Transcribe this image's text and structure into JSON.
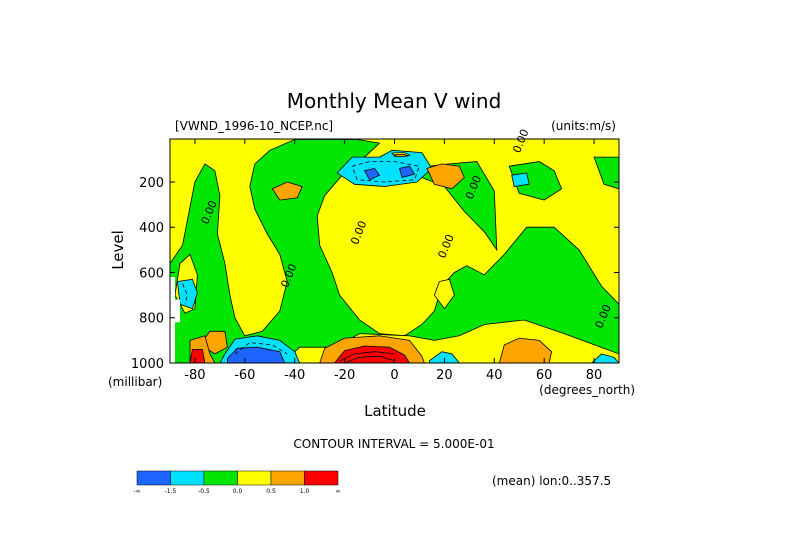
{
  "chart_data": {
    "type": "contour",
    "title": "Monthly Mean V wind",
    "dataset": "[VWND_1996-10_NCEP.nc]",
    "units": "(units:m/s)",
    "xlabel": "Latitude",
    "x_units": "(degrees_north)",
    "ylabel": "Level",
    "y_units": "(millibar)",
    "xlim": [
      -90,
      90
    ],
    "ylim": [
      1000,
      10
    ],
    "x_ticks": [
      {
        "value": -80,
        "label": "-80"
      },
      {
        "value": -60,
        "label": "-60"
      },
      {
        "value": -40,
        "label": "-40"
      },
      {
        "value": -20,
        "label": "-20"
      },
      {
        "value": 0,
        "label": "0"
      },
      {
        "value": 20,
        "label": "20"
      },
      {
        "value": 40,
        "label": "40"
      },
      {
        "value": 60,
        "label": "60"
      },
      {
        "value": 80,
        "label": "80"
      }
    ],
    "y_ticks": [
      {
        "value": 200,
        "label": "200"
      },
      {
        "value": 400,
        "label": "400"
      },
      {
        "value": 600,
        "label": "600"
      },
      {
        "value": 800,
        "label": "800"
      },
      {
        "value": 1000,
        "label": "1000"
      }
    ],
    "contour_interval": "CONTOUR INTERVAL = 5.000E-01",
    "mean_note": "(mean) lon:0..357.5",
    "levels": [
      {
        "label": "-∞",
        "color": "#1e64ff"
      },
      {
        "label": "-1.5",
        "color": "#00e1ff"
      },
      {
        "label": "-0.5",
        "color": "#00e600"
      },
      {
        "label": "0.0",
        "color": "#ffff00"
      },
      {
        "label": "0.5",
        "color": "#ffa500"
      },
      {
        "label": "1.0",
        "color": "#ff0000"
      },
      {
        "label": "∞",
        "color": ""
      }
    ],
    "contour_labels": [
      {
        "lat": 52,
        "lev": 25,
        "text": "0.00"
      },
      {
        "lat": -73,
        "lev": 340,
        "text": "0.00"
      },
      {
        "lat": -13,
        "lev": 430,
        "text": "0.00"
      },
      {
        "lat": -41,
        "lev": 620,
        "text": "0.00"
      },
      {
        "lat": 22,
        "lev": 490,
        "text": "0.00"
      },
      {
        "lat": 33,
        "lev": 230,
        "text": "0.00"
      },
      {
        "lat": 85,
        "lev": 800,
        "text": "0.00"
      }
    ],
    "regions": [
      {
        "level": "neutral",
        "points": [
          [
            -90,
            10
          ],
          [
            90,
            10
          ],
          [
            90,
            1000
          ],
          [
            -90,
            1000
          ]
        ]
      },
      {
        "level": "neg_small",
        "points": [
          [
            -90,
            560
          ],
          [
            -85,
            480
          ],
          [
            -80,
            200
          ],
          [
            -76,
            120
          ],
          [
            -72,
            150
          ],
          [
            -70,
            260
          ],
          [
            -71,
            430
          ],
          [
            -68,
            560
          ],
          [
            -66,
            700
          ],
          [
            -64,
            800
          ],
          [
            -60,
            880
          ],
          [
            -53,
            860
          ],
          [
            -46,
            770
          ],
          [
            -43,
            640
          ],
          [
            -46,
            520
          ],
          [
            -51,
            430
          ],
          [
            -56,
            320
          ],
          [
            -58,
            220
          ],
          [
            -56,
            120
          ],
          [
            -50,
            60
          ],
          [
            -40,
            12
          ],
          [
            -15,
            12
          ],
          [
            -6,
            28
          ],
          [
            -11,
            80
          ],
          [
            -21,
            170
          ],
          [
            -28,
            260
          ],
          [
            -31,
            350
          ],
          [
            -30,
            480
          ],
          [
            -25,
            600
          ],
          [
            -22,
            700
          ],
          [
            -14,
            810
          ],
          [
            -6,
            870
          ],
          [
            4,
            880
          ],
          [
            11,
            830
          ],
          [
            16,
            770
          ],
          [
            19,
            660
          ],
          [
            24,
            600
          ],
          [
            29,
            570
          ],
          [
            36,
            610
          ],
          [
            44,
            520
          ],
          [
            53,
            400
          ],
          [
            64,
            400
          ],
          [
            74,
            500
          ],
          [
            83,
            660
          ],
          [
            90,
            740
          ],
          [
            90,
            1000
          ],
          [
            -90,
            1000
          ]
        ]
      },
      {
        "level": "neg_small",
        "points": [
          [
            6,
            140
          ],
          [
            22,
            120
          ],
          [
            33,
            110
          ],
          [
            40,
            240
          ],
          [
            41,
            500
          ],
          [
            36,
            420
          ],
          [
            28,
            330
          ],
          [
            20,
            220
          ],
          [
            11,
            180
          ]
        ]
      },
      {
        "level": "neg_small",
        "points": [
          [
            46,
            130
          ],
          [
            58,
            110
          ],
          [
            64,
            150
          ],
          [
            67,
            230
          ],
          [
            60,
            280
          ],
          [
            50,
            250
          ]
        ]
      },
      {
        "level": "neg_small",
        "points": [
          [
            80,
            90
          ],
          [
            90,
            90
          ],
          [
            90,
            230
          ],
          [
            84,
            210
          ]
        ]
      },
      {
        "level": "neutral",
        "points": [
          [
            -86,
            560
          ],
          [
            -82,
            520
          ],
          [
            -79,
            610
          ],
          [
            -80,
            760
          ],
          [
            -84,
            780
          ],
          [
            -88,
            700
          ]
        ]
      },
      {
        "level": "neutral",
        "points": [
          [
            -45,
            1000
          ],
          [
            -38,
            930
          ],
          [
            -24,
            930
          ],
          [
            -14,
            870
          ],
          [
            6,
            880
          ],
          [
            16,
            900
          ],
          [
            26,
            880
          ],
          [
            36,
            830
          ],
          [
            52,
            810
          ],
          [
            68,
            870
          ],
          [
            90,
            960
          ],
          [
            90,
            1000
          ]
        ]
      },
      {
        "level": "neutral",
        "points": [
          [
            18,
            640
          ],
          [
            22,
            630
          ],
          [
            24,
            700
          ],
          [
            20,
            760
          ],
          [
            16,
            700
          ]
        ]
      },
      {
        "level": "neg_med",
        "points": [
          [
            -87,
            640
          ],
          [
            -81,
            630
          ],
          [
            -79,
            690
          ],
          [
            -81,
            760
          ],
          [
            -86,
            740
          ]
        ]
      },
      {
        "level": "neg_med",
        "points": [
          [
            -6,
            90
          ],
          [
            -1,
            60
          ],
          [
            11,
            70
          ],
          [
            15,
            140
          ],
          [
            9,
            200
          ],
          [
            -4,
            220
          ],
          [
            -16,
            210
          ],
          [
            -23,
            160
          ],
          [
            -17,
            90
          ]
        ]
      },
      {
        "level": "neg_med",
        "points": [
          [
            47,
            170
          ],
          [
            53,
            160
          ],
          [
            54,
            210
          ],
          [
            48,
            220
          ]
        ]
      },
      {
        "level": "neg_med",
        "points": [
          [
            -68,
            960
          ],
          [
            -64,
            895
          ],
          [
            -55,
            880
          ],
          [
            -46,
            900
          ],
          [
            -40,
            950
          ],
          [
            -38,
            1000
          ],
          [
            -70,
            1000
          ]
        ]
      },
      {
        "level": "neg_med",
        "points": [
          [
            14,
            990
          ],
          [
            19,
            950
          ],
          [
            23,
            960
          ],
          [
            26,
            1000
          ],
          [
            14,
            1000
          ]
        ]
      },
      {
        "level": "neg_med",
        "points": [
          [
            79,
            1000
          ],
          [
            83,
            960
          ],
          [
            88,
            975
          ],
          [
            90,
            1000
          ]
        ]
      },
      {
        "level": "neg_large",
        "points": [
          [
            -12,
            150
          ],
          [
            -8,
            140
          ],
          [
            -6,
            170
          ],
          [
            -10,
            190
          ]
        ]
      },
      {
        "level": "neg_large",
        "points": [
          [
            2,
            140
          ],
          [
            6,
            130
          ],
          [
            8,
            165
          ],
          [
            3,
            180
          ]
        ]
      },
      {
        "level": "neg_large",
        "points": [
          [
            -67,
            980
          ],
          [
            -63,
            935
          ],
          [
            -55,
            930
          ],
          [
            -46,
            950
          ],
          [
            -44,
            1000
          ],
          [
            -67,
            1000
          ]
        ]
      },
      {
        "level": "pos_small",
        "points": [
          [
            -49,
            230
          ],
          [
            -43,
            200
          ],
          [
            -37,
            220
          ],
          [
            -39,
            270
          ],
          [
            -46,
            280
          ]
        ]
      },
      {
        "level": "pos_small",
        "points": [
          [
            13,
            140
          ],
          [
            19,
            120
          ],
          [
            26,
            130
          ],
          [
            28,
            180
          ],
          [
            23,
            230
          ],
          [
            16,
            210
          ]
        ]
      },
      {
        "level": "pos_small",
        "points": [
          [
            -30,
            1000
          ],
          [
            -28,
            935
          ],
          [
            -20,
            890
          ],
          [
            -6,
            880
          ],
          [
            6,
            900
          ],
          [
            11,
            970
          ],
          [
            12,
            1000
          ]
        ]
      },
      {
        "level": "pos_small",
        "points": [
          [
            -74,
            860
          ],
          [
            -68,
            860
          ],
          [
            -67,
            930
          ],
          [
            -72,
            960
          ],
          [
            -78,
            920
          ]
        ]
      },
      {
        "level": "pos_small",
        "points": [
          [
            42,
            1000
          ],
          [
            44,
            920
          ],
          [
            50,
            890
          ],
          [
            58,
            900
          ],
          [
            63,
            950
          ],
          [
            62,
            1000
          ]
        ]
      },
      {
        "level": "pos_small",
        "points": [
          [
            -82,
            1000
          ],
          [
            -82,
            900
          ],
          [
            -76,
            880
          ],
          [
            -74,
            960
          ],
          [
            -72,
            1000
          ]
        ]
      },
      {
        "level": "pos_large",
        "points": [
          [
            -24,
            1000
          ],
          [
            -20,
            945
          ],
          [
            -12,
            925
          ],
          [
            -2,
            930
          ],
          [
            4,
            965
          ],
          [
            6,
            1000
          ]
        ]
      },
      {
        "level": "pos_large",
        "points": [
          [
            -82,
            1000
          ],
          [
            -81,
            940
          ],
          [
            -77,
            940
          ],
          [
            -76,
            1000
          ]
        ]
      },
      {
        "level": "neutral",
        "points": [
          [
            -1,
            72
          ],
          [
            4,
            70
          ],
          [
            6,
            82
          ],
          [
            0,
            86
          ]
        ]
      },
      {
        "level": "pos_small",
        "points": [
          [
            0,
            80
          ],
          [
            4,
            78
          ],
          [
            5,
            86
          ],
          [
            1,
            88
          ]
        ]
      }
    ],
    "missing_regions": [
      {
        "points": [
          [
            -90,
            620
          ],
          [
            -88,
            620
          ],
          [
            -88,
            1000
          ],
          [
            -90,
            1000
          ]
        ]
      },
      {
        "points": [
          [
            -88,
            720
          ],
          [
            -86,
            720
          ],
          [
            -86,
            820
          ],
          [
            -88,
            820
          ]
        ]
      }
    ],
    "dashed_contours": [
      [
        [
          -85,
          650
        ],
        [
          -83,
          700
        ],
        [
          -84,
          740
        ]
      ],
      [
        [
          -17,
          130
        ],
        [
          -10,
          110
        ],
        [
          0,
          110
        ],
        [
          10,
          130
        ],
        [
          8,
          190
        ],
        [
          -4,
          200
        ],
        [
          -15,
          190
        ],
        [
          -17,
          130
        ]
      ],
      [
        [
          -64,
          960
        ],
        [
          -58,
          910
        ],
        [
          -49,
          920
        ],
        [
          -43,
          960
        ]
      ]
    ],
    "solid_contours": [
      [
        [
          -22,
          990
        ],
        [
          -16,
          960
        ],
        [
          -8,
          950
        ],
        [
          0,
          960
        ]
      ],
      [
        [
          -20,
          1000
        ],
        [
          -14,
          975
        ],
        [
          -6,
          970
        ],
        [
          0,
          990
        ]
      ]
    ]
  }
}
